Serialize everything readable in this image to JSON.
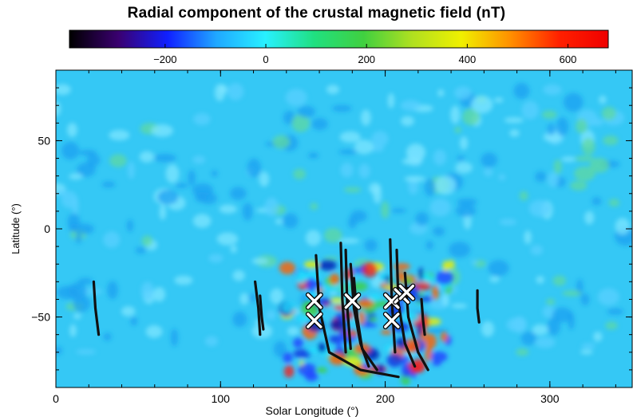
{
  "chart_data": {
    "type": "heatmap",
    "title": "Radial component of the crustal magnetic field (nT)",
    "xlabel": "Solar Longitude (°)",
    "ylabel": "Latitude (°)",
    "xlim": [
      0,
      350
    ],
    "ylim": [
      -90,
      90
    ],
    "x_ticks": [
      0,
      100,
      200,
      300
    ],
    "y_ticks": [
      -50,
      0,
      50
    ],
    "colorbar": {
      "range": [
        -390,
        680
      ],
      "ticks": [
        -200,
        0,
        200,
        400,
        600
      ],
      "colors": [
        "#000000",
        "#3a0070",
        "#1020ff",
        "#20a8ff",
        "#28f0ff",
        "#20e080",
        "#40d040",
        "#b0e020",
        "#f0f000",
        "#ff9000",
        "#ff2000",
        "#f00000"
      ]
    },
    "background_color": "#35c8f5",
    "tracks": [
      {
        "points": [
          [
            23,
            -30
          ],
          [
            24,
            -45
          ],
          [
            26,
            -60
          ]
        ]
      },
      {
        "points": [
          [
            121,
            -30
          ],
          [
            123,
            -45
          ],
          [
            124,
            -60
          ]
        ]
      },
      {
        "points": [
          [
            124,
            -38
          ],
          [
            125,
            -50
          ],
          [
            126,
            -57
          ]
        ]
      },
      {
        "points": [
          [
            158,
            -15
          ],
          [
            160,
            -45
          ],
          [
            166,
            -70
          ],
          [
            185,
            -80
          ],
          [
            208,
            -84
          ]
        ]
      },
      {
        "points": [
          [
            173,
            -8
          ],
          [
            174,
            -40
          ],
          [
            176,
            -70
          ]
        ]
      },
      {
        "points": [
          [
            176,
            -12
          ],
          [
            177,
            -45
          ],
          [
            179,
            -68
          ]
        ]
      },
      {
        "points": [
          [
            179,
            -20
          ],
          [
            181,
            -45
          ],
          [
            185,
            -65
          ],
          [
            190,
            -78
          ]
        ]
      },
      {
        "points": [
          [
            181,
            -28
          ],
          [
            183,
            -50
          ],
          [
            186,
            -68
          ],
          [
            195,
            -80
          ]
        ]
      },
      {
        "points": [
          [
            203,
            -6
          ],
          [
            204,
            -40
          ],
          [
            206,
            -70
          ]
        ]
      },
      {
        "points": [
          [
            207,
            -12
          ],
          [
            208,
            -42
          ],
          [
            212,
            -65
          ],
          [
            218,
            -78
          ]
        ]
      },
      {
        "points": [
          [
            212,
            -25
          ],
          [
            214,
            -50
          ],
          [
            220,
            -70
          ],
          [
            226,
            -80
          ]
        ]
      },
      {
        "points": [
          [
            222,
            -40
          ],
          [
            223,
            -52
          ],
          [
            224,
            -60
          ]
        ]
      },
      {
        "points": [
          [
            256,
            -35
          ],
          [
            256,
            -45
          ],
          [
            257,
            -53
          ]
        ]
      }
    ],
    "markers": [
      {
        "x": 157,
        "y": -41
      },
      {
        "x": 157,
        "y": -52
      },
      {
        "x": 180,
        "y": -41
      },
      {
        "x": 204,
        "y": -41
      },
      {
        "x": 204,
        "y": -52
      },
      {
        "x": 210,
        "y": -38
      },
      {
        "x": 213,
        "y": -36
      }
    ]
  }
}
